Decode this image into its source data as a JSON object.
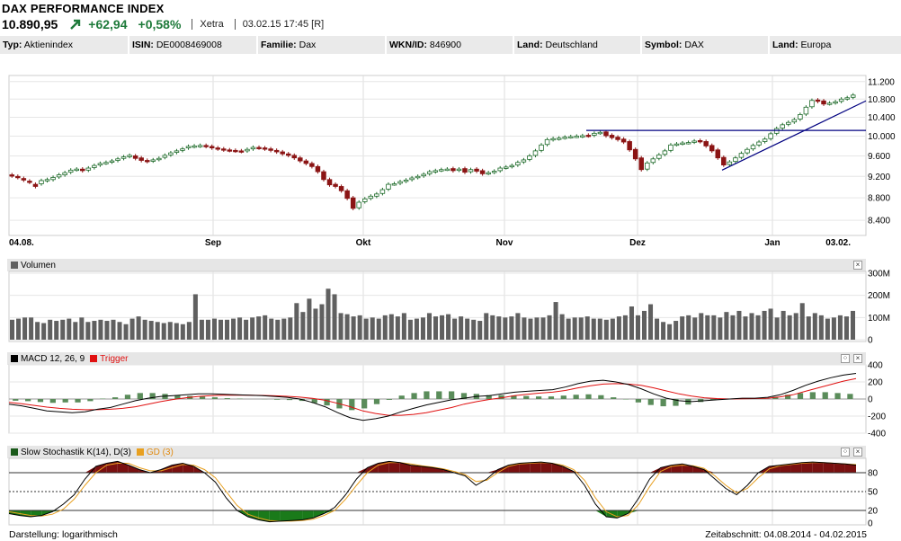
{
  "header": {
    "title": "DAX PERFORMANCE INDEX",
    "price": "10.890,95",
    "change": "+62,94",
    "change_pct": "+0,58%",
    "exchange": "Xetra",
    "timestamp": "03.02.15 17:45 [R]",
    "up_color": "#1e7a3a"
  },
  "infobar": [
    {
      "key": "Typ:",
      "value": "Aktienindex"
    },
    {
      "key": "ISIN:",
      "value": "DE0008469008"
    },
    {
      "key": "Familie:",
      "value": "Dax"
    },
    {
      "key": "WKN/ID:",
      "value": "846900"
    },
    {
      "key": "Land:",
      "value": "Deutschland"
    },
    {
      "key": "Symbol:",
      "value": "DAX"
    },
    {
      "key": "Land:",
      "value": "Europa"
    }
  ],
  "panels": {
    "volume": {
      "label": "Volumen",
      "close": "×"
    },
    "macd": {
      "label": "MACD 12, 26, 9",
      "trigger": "Trigger",
      "close": "×",
      "expand": "⁘"
    },
    "stoch": {
      "label": "Slow Stochastik K(14), D(3)",
      "gd": "GD (3)",
      "close": "×",
      "expand": "⁘"
    }
  },
  "footer": {
    "left": "Darstellung: logarithmisch",
    "right": "Zeitabschnitt: 04.08.2014 - 04.02.2015"
  },
  "colors": {
    "up": "#ffffff",
    "down": "#8b1414",
    "candle_border": "#1e6b2a",
    "volume": "#606060",
    "macd": "#000000",
    "trigger": "#e01010",
    "hist": "#5a8c5a",
    "stoch_pos": "#7a1010",
    "stoch_neg": "#1a7a1a",
    "gd": "#e8a020",
    "trend": "#000080"
  },
  "chart_data": [
    {
      "type": "candlestick",
      "title": "DAX PERFORMANCE INDEX",
      "scale": "log",
      "x_tick_labels": [
        "04.08.",
        "Sep",
        "Okt",
        "Nov",
        "Dez",
        "Jan",
        "03.02."
      ],
      "y_tick_labels": [
        "8.400",
        "8.800",
        "9.200",
        "9.600",
        "10.000",
        "10.400",
        "10.800",
        "11.200"
      ],
      "ylim": [
        8200,
        11300
      ],
      "closes": [
        9210,
        9180,
        9130,
        9090,
        9010,
        9120,
        9140,
        9180,
        9230,
        9270,
        9320,
        9340,
        9310,
        9360,
        9410,
        9450,
        9470,
        9500,
        9540,
        9580,
        9610,
        9550,
        9510,
        9490,
        9520,
        9550,
        9610,
        9660,
        9700,
        9740,
        9790,
        9800,
        9810,
        9790,
        9760,
        9740,
        9720,
        9710,
        9700,
        9690,
        9730,
        9770,
        9760,
        9740,
        9710,
        9680,
        9640,
        9610,
        9560,
        9500,
        9450,
        9390,
        9290,
        9140,
        9040,
        9010,
        8930,
        8790,
        8610,
        8720,
        8780,
        8830,
        8870,
        8950,
        9050,
        9060,
        9100,
        9130,
        9170,
        9200,
        9240,
        9290,
        9310,
        9330,
        9340,
        9310,
        9340,
        9280,
        9330,
        9300,
        9250,
        9270,
        9300,
        9360,
        9380,
        9410,
        9470,
        9520,
        9600,
        9700,
        9820,
        9930,
        9950,
        9960,
        9980,
        9990,
        10000,
        10010,
        10010,
        10060,
        10080,
        10010,
        9970,
        9930,
        9880,
        9720,
        9540,
        9330,
        9460,
        9540,
        9620,
        9700,
        9820,
        9840,
        9860,
        9870,
        9900,
        9890,
        9800,
        9700,
        9560,
        9420,
        9480,
        9560,
        9650,
        9730,
        9810,
        9880,
        9940,
        10050,
        10160,
        10240,
        10290,
        10350,
        10460,
        10620,
        10770,
        10750,
        10690,
        10710,
        10740,
        10800,
        10830,
        10890
      ],
      "opens": [
        9230,
        9200,
        9160,
        9110,
        9050,
        9060,
        9120,
        9140,
        9190,
        9230,
        9280,
        9330,
        9340,
        9320,
        9370,
        9420,
        9460,
        9480,
        9510,
        9550,
        9590,
        9600,
        9560,
        9510,
        9500,
        9530,
        9570,
        9620,
        9670,
        9710,
        9760,
        9790,
        9800,
        9810,
        9790,
        9760,
        9740,
        9720,
        9710,
        9700,
        9700,
        9740,
        9770,
        9760,
        9740,
        9710,
        9680,
        9640,
        9610,
        9560,
        9500,
        9450,
        9390,
        9290,
        9140,
        9050,
        9010,
        8930,
        8800,
        8620,
        8730,
        8790,
        8830,
        8880,
        8960,
        9060,
        9070,
        9110,
        9140,
        9180,
        9210,
        9250,
        9290,
        9320,
        9340,
        9350,
        9320,
        9350,
        9290,
        9340,
        9310,
        9260,
        9280,
        9310,
        9370,
        9390,
        9420,
        9480,
        9530,
        9610,
        9710,
        9830,
        9930,
        9950,
        9970,
        9990,
        10000,
        10000,
        10020,
        10020,
        10070,
        10090,
        10020,
        9980,
        9940,
        9890,
        9730,
        9560,
        9340,
        9470,
        9550,
        9630,
        9710,
        9830,
        9850,
        9870,
        9880,
        9910,
        9890,
        9810,
        9720,
        9570,
        9430,
        9490,
        9570,
        9660,
        9740,
        9820,
        9890,
        9950,
        10060,
        10170,
        10250,
        10300,
        10360,
        10470,
        10630,
        10780,
        10760,
        10700,
        10720,
        10750,
        10810,
        10840
      ]
    },
    {
      "type": "bar",
      "title": "Volumen",
      "y_tick_labels": [
        "0",
        "100M",
        "200M",
        "300M"
      ],
      "ylim": [
        0,
        300
      ],
      "values": [
        90,
        95,
        100,
        100,
        80,
        75,
        90,
        85,
        90,
        95,
        80,
        100,
        80,
        85,
        90,
        85,
        90,
        80,
        70,
        95,
        105,
        90,
        85,
        80,
        75,
        80,
        75,
        70,
        80,
        205,
        90,
        90,
        95,
        90,
        90,
        95,
        100,
        90,
        100,
        105,
        110,
        95,
        90,
        95,
        100,
        165,
        125,
        185,
        140,
        160,
        230,
        205,
        120,
        115,
        105,
        110,
        95,
        100,
        95,
        110,
        115,
        105,
        120,
        90,
        95,
        100,
        120,
        105,
        110,
        115,
        95,
        105,
        95,
        90,
        85,
        120,
        110,
        105,
        100,
        105,
        120,
        100,
        95,
        100,
        100,
        110,
        170,
        115,
        95,
        100,
        100,
        105,
        95,
        95,
        90,
        95,
        105,
        110,
        150,
        110,
        130,
        160,
        95,
        80,
        70,
        85,
        105,
        110,
        100,
        120,
        110,
        110,
        100,
        125,
        110,
        130,
        105,
        120,
        110,
        130,
        140,
        100,
        130,
        110,
        120,
        165,
        105,
        120,
        110,
        95,
        100,
        110,
        105,
        130
      ],
      "unit": "M"
    },
    {
      "type": "line",
      "title": "MACD 12, 26, 9",
      "series": [
        {
          "name": "MACD 12, 26, 9",
          "values": [
            -60,
            -80,
            -110,
            -140,
            -150,
            -160,
            -150,
            -120,
            -100,
            -60,
            -20,
            10,
            30,
            40,
            50,
            60,
            60,
            55,
            50,
            45,
            40,
            30,
            20,
            0,
            -40,
            -90,
            -160,
            -220,
            -250,
            -230,
            -200,
            -150,
            -110,
            -70,
            -40,
            -10,
            10,
            30,
            40,
            60,
            80,
            90,
            100,
            110,
            140,
            180,
            210,
            220,
            200,
            170,
            120,
            60,
            10,
            -20,
            -30,
            -20,
            -10,
            0,
            10,
            10,
            20,
            50,
            100,
            160,
            210,
            250,
            280,
            300
          ]
        },
        {
          "name": "Trigger",
          "values": [
            -40,
            -55,
            -75,
            -95,
            -110,
            -120,
            -125,
            -125,
            -120,
            -110,
            -90,
            -60,
            -30,
            -5,
            15,
            30,
            40,
            45,
            45,
            45,
            42,
            38,
            32,
            22,
            8,
            -15,
            -50,
            -90,
            -140,
            -170,
            -190,
            -190,
            -180,
            -160,
            -130,
            -100,
            -60,
            -30,
            -5,
            15,
            40,
            55,
            70,
            80,
            100,
            130,
            155,
            175,
            180,
            175,
            160,
            130,
            95,
            60,
            35,
            15,
            5,
            0,
            2,
            5,
            10,
            25,
            50,
            90,
            130,
            170,
            210,
            240
          ]
        }
      ],
      "histogram": [
        -20,
        -25,
        -35,
        -45,
        -40,
        -40,
        -25,
        5,
        20,
        50,
        70,
        70,
        60,
        45,
        35,
        30,
        20,
        10,
        5,
        0,
        -2,
        -8,
        -12,
        -22,
        -48,
        -75,
        -110,
        -130,
        -110,
        -60,
        -10,
        40,
        70,
        90,
        90,
        90,
        70,
        60,
        45,
        45,
        40,
        35,
        30,
        30,
        40,
        50,
        55,
        45,
        20,
        -5,
        -40,
        -70,
        -85,
        -80,
        -65,
        -35,
        -15,
        0,
        8,
        5,
        10,
        25,
        50,
        70,
        80,
        80,
        70,
        60
      ],
      "y_tick_labels": [
        "-400",
        "-200",
        "0",
        "200",
        "400"
      ],
      "ylim": [
        -400,
        400
      ]
    },
    {
      "type": "line",
      "title": "Slow Stochastik K(14), D(3)",
      "series": [
        {
          "name": "Slow Stochastik K(14), D(3)",
          "values": [
            15,
            12,
            10,
            12,
            18,
            30,
            45,
            70,
            90,
            95,
            98,
            92,
            85,
            80,
            85,
            92,
            95,
            90,
            80,
            65,
            40,
            20,
            10,
            5,
            2,
            3,
            4,
            5,
            8,
            15,
            25,
            45,
            70,
            88,
            95,
            98,
            96,
            92,
            90,
            88,
            85,
            80,
            75,
            60,
            70,
            85,
            92,
            95,
            96,
            97,
            95,
            90,
            82,
            60,
            30,
            10,
            8,
            15,
            40,
            70,
            88,
            92,
            94,
            90,
            85,
            70,
            55,
            45,
            60,
            80,
            90,
            92,
            94,
            96,
            97,
            96,
            95,
            94,
            92
          ]
        },
        {
          "name": "GD (3)",
          "values": [
            18,
            15,
            12,
            11,
            14,
            22,
            38,
            60,
            80,
            92,
            95,
            95,
            88,
            83,
            83,
            88,
            93,
            92,
            85,
            72,
            50,
            28,
            14,
            8,
            4,
            3,
            3,
            4,
            6,
            12,
            20,
            38,
            60,
            80,
            92,
            96,
            96,
            94,
            91,
            89,
            86,
            82,
            77,
            66,
            68,
            80,
            90,
            94,
            95,
            96,
            95,
            92,
            85,
            68,
            40,
            18,
            10,
            12,
            30,
            58,
            82,
            90,
            92,
            91,
            87,
            75,
            60,
            48,
            55,
            72,
            86,
            91,
            93,
            95,
            96,
            96,
            95,
            94,
            93
          ]
        }
      ],
      "levels": [
        20,
        50,
        80
      ],
      "y_tick_labels": [
        "0",
        "20",
        "50",
        "80"
      ],
      "ylim": [
        0,
        100
      ]
    }
  ]
}
